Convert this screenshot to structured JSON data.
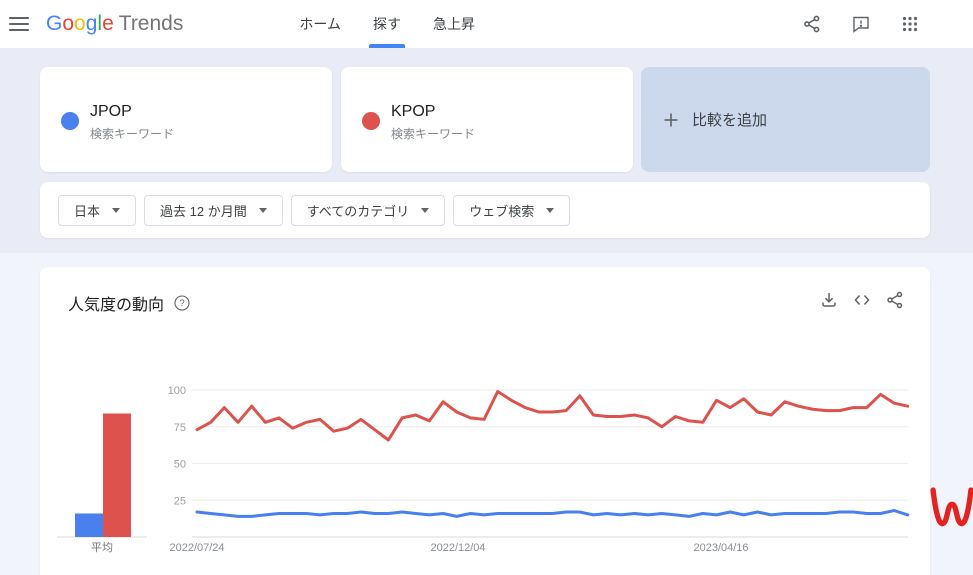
{
  "header": {
    "logo": {
      "letters": [
        {
          "ch": "G",
          "color": "#4285F4"
        },
        {
          "ch": "o",
          "color": "#EA4335"
        },
        {
          "ch": "o",
          "color": "#FBBC05"
        },
        {
          "ch": "g",
          "color": "#4285F4"
        },
        {
          "ch": "l",
          "color": "#34A853"
        },
        {
          "ch": "e",
          "color": "#EA4335"
        }
      ],
      "product": "Trends"
    },
    "nav": [
      {
        "label": "ホーム",
        "active": false
      },
      {
        "label": "探す",
        "active": true
      },
      {
        "label": "急上昇",
        "active": false
      }
    ],
    "icons": [
      "share-icon",
      "feedback-icon",
      "apps-grid-icon"
    ],
    "accent": "#4285f4"
  },
  "comparison": {
    "terms": [
      {
        "name": "JPOP",
        "type_label": "検索キーワード",
        "color": "#4a80ee"
      },
      {
        "name": "KPOP",
        "type_label": "検索キーワード",
        "color": "#dd524c"
      }
    ],
    "add_label": "比較を追加"
  },
  "filters": [
    {
      "label": "日本"
    },
    {
      "label": "過去 12 か月間"
    },
    {
      "label": "すべてのカテゴリ"
    },
    {
      "label": "ウェブ検索"
    }
  ],
  "chart_card": {
    "title": "人気度の動向",
    "action_icons": [
      "download-icon",
      "embed-icon",
      "share-icon"
    ]
  },
  "chart_data": {
    "type": "line",
    "title": "人気度の動向",
    "ylim": [
      0,
      100
    ],
    "y_ticks": [
      25,
      50,
      75,
      100
    ],
    "grid": true,
    "avg_label": "平均",
    "x_tick_labels": [
      "2022/07/24",
      "2022/12/04",
      "2023/04/16"
    ],
    "series": [
      {
        "name": "JPOP",
        "color": "#4a80ee",
        "average": 16,
        "values": [
          17,
          16,
          15,
          14,
          14,
          15,
          16,
          16,
          16,
          15,
          16,
          16,
          17,
          16,
          16,
          17,
          16,
          15,
          16,
          14,
          16,
          15,
          16,
          16,
          16,
          16,
          16,
          17,
          17,
          15,
          16,
          15,
          16,
          15,
          16,
          15,
          14,
          16,
          15,
          17,
          15,
          17,
          15,
          16,
          16,
          16,
          16,
          17,
          17,
          16,
          16,
          18,
          15
        ]
      },
      {
        "name": "KPOP",
        "color": "#dd524c",
        "average": 84,
        "values": [
          73,
          78,
          88,
          78,
          89,
          78,
          81,
          74,
          78,
          80,
          72,
          74,
          80,
          73,
          66,
          81,
          83,
          79,
          92,
          85,
          81,
          80,
          99,
          93,
          88,
          85,
          85,
          86,
          96,
          83,
          82,
          82,
          83,
          81,
          75,
          82,
          79,
          78,
          93,
          88,
          94,
          85,
          83,
          92,
          89,
          87,
          86,
          86,
          88,
          88,
          97,
          91,
          89
        ]
      }
    ]
  },
  "watermark": {
    "char": "w",
    "color": "#e42320"
  }
}
